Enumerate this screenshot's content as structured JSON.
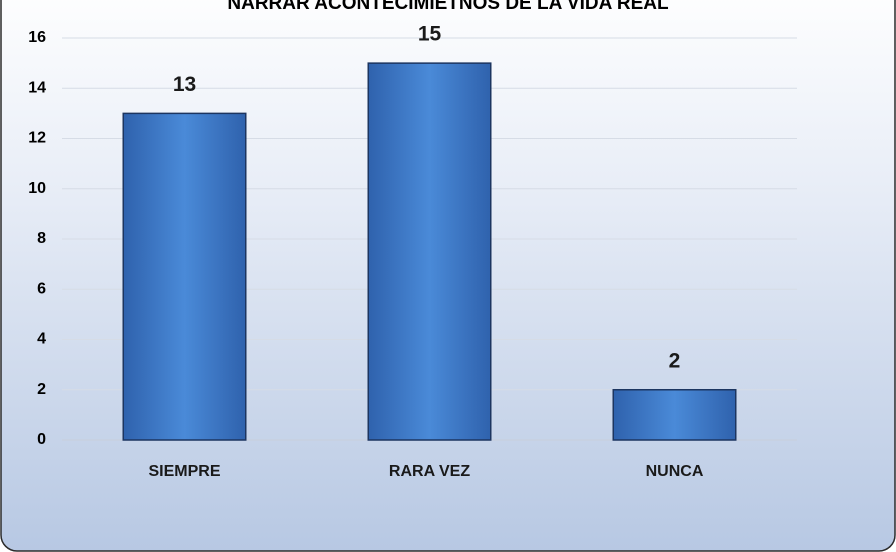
{
  "chart_data": {
    "type": "bar",
    "title": "NARRAR ACONTECIMIETNOS DE LA VIDA REAL",
    "categories": [
      "SIEMPRE",
      "RARA VEZ",
      "NUNCA"
    ],
    "values": [
      13,
      15,
      2
    ],
    "color": "#3f7fcf",
    "ylim": [
      0,
      16
    ],
    "yticks": [
      0,
      2,
      4,
      6,
      8,
      10,
      12,
      14,
      16
    ],
    "grid": true
  }
}
